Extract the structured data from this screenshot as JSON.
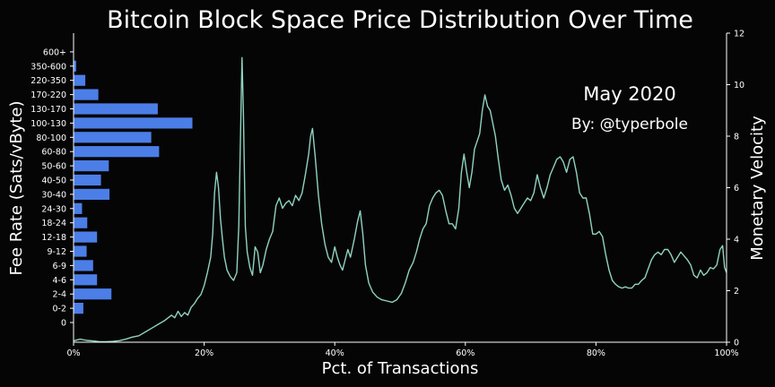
{
  "colors": {
    "background": "#060506",
    "bars": "#4c7ee8",
    "line": "#8fd3c0",
    "text": "#ffffff"
  },
  "chart_data": {
    "type": "bar",
    "orientation": "horizontal",
    "title": "Bitcoin Block Space Price Distribution Over Time",
    "xlabel": "Pct. of Transactions",
    "ylabel": "Fee Rate (Sats/vByte)",
    "y2label": "Monetary Velocity",
    "xlim": [
      0,
      100
    ],
    "x_ticks": [
      "0%",
      "20%",
      "40%",
      "60%",
      "80%",
      "100%"
    ],
    "y2lim": [
      0,
      12
    ],
    "y2_ticks": [
      "0",
      "2",
      "4",
      "6",
      "8",
      "10",
      "12"
    ],
    "annotations": [
      "May 2020",
      "By: @typerbole"
    ],
    "grid": false,
    "categories": [
      "0",
      "0-2",
      "2-4",
      "4-6",
      "6-9",
      "9-12",
      "12-18",
      "18-24",
      "24-30",
      "30-40",
      "40-50",
      "50-60",
      "60-80",
      "80-100",
      "100-130",
      "130-170",
      "170-220",
      "220-350",
      "350-600",
      "600+"
    ],
    "values": [
      0.0,
      1.5,
      5.8,
      3.6,
      3.0,
      2.0,
      3.6,
      2.1,
      1.3,
      5.5,
      4.2,
      5.4,
      13.1,
      11.9,
      18.2,
      12.9,
      3.8,
      1.8,
      0.4,
      0.0
    ],
    "series": [
      {
        "values": [
          [
            0,
            0.05
          ],
          [
            1,
            0.12
          ],
          [
            2,
            0.07
          ],
          [
            3,
            0.05
          ],
          [
            4,
            0.02
          ],
          [
            5,
            0.02
          ],
          [
            6,
            0.03
          ],
          [
            7,
            0.06
          ],
          [
            8,
            0.12
          ],
          [
            9,
            0.2
          ],
          [
            10,
            0.25
          ],
          [
            11,
            0.4
          ],
          [
            12,
            0.55
          ],
          [
            13,
            0.7
          ],
          [
            14,
            0.85
          ],
          [
            15,
            1.05
          ],
          [
            15.5,
            0.95
          ],
          [
            16,
            1.2
          ],
          [
            16.5,
            1.0
          ],
          [
            17,
            1.15
          ],
          [
            17.5,
            1.05
          ],
          [
            18,
            1.35
          ],
          [
            18.5,
            1.5
          ],
          [
            19,
            1.7
          ],
          [
            19.5,
            1.85
          ],
          [
            20,
            2.2
          ],
          [
            20.5,
            2.7
          ],
          [
            21,
            3.3
          ],
          [
            21.3,
            4.2
          ],
          [
            21.6,
            5.8
          ],
          [
            21.9,
            6.6
          ],
          [
            22.2,
            6.0
          ],
          [
            22.5,
            4.8
          ],
          [
            22.8,
            4.0
          ],
          [
            23.1,
            3.3
          ],
          [
            23.5,
            2.8
          ],
          [
            24,
            2.55
          ],
          [
            24.5,
            2.4
          ],
          [
            25,
            2.7
          ],
          [
            25.3,
            4.5
          ],
          [
            25.6,
            8.5
          ],
          [
            25.8,
            11.05
          ],
          [
            26.0,
            9.0
          ],
          [
            26.3,
            4.5
          ],
          [
            26.6,
            3.5
          ],
          [
            27,
            2.9
          ],
          [
            27.4,
            2.6
          ],
          [
            27.8,
            3.7
          ],
          [
            28.2,
            3.5
          ],
          [
            28.6,
            2.7
          ],
          [
            29,
            3.0
          ],
          [
            29.5,
            3.6
          ],
          [
            30,
            4.0
          ],
          [
            30.5,
            4.3
          ],
          [
            31,
            5.3
          ],
          [
            31.5,
            5.6
          ],
          [
            32,
            5.2
          ],
          [
            32.5,
            5.4
          ],
          [
            33,
            5.5
          ],
          [
            33.5,
            5.3
          ],
          [
            34,
            5.7
          ],
          [
            34.5,
            5.5
          ],
          [
            35,
            5.8
          ],
          [
            35.5,
            6.5
          ],
          [
            36,
            7.3
          ],
          [
            36.3,
            8.0
          ],
          [
            36.6,
            8.3
          ],
          [
            37,
            7.2
          ],
          [
            37.5,
            5.7
          ],
          [
            38,
            4.6
          ],
          [
            38.5,
            3.8
          ],
          [
            39,
            3.3
          ],
          [
            39.5,
            3.1
          ],
          [
            40,
            3.7
          ],
          [
            40.4,
            3.3
          ],
          [
            40.8,
            3.0
          ],
          [
            41.2,
            2.8
          ],
          [
            41.6,
            3.2
          ],
          [
            42,
            3.6
          ],
          [
            42.4,
            3.3
          ],
          [
            43,
            4.0
          ],
          [
            43.5,
            4.7
          ],
          [
            43.9,
            5.1
          ],
          [
            44.3,
            4.2
          ],
          [
            44.7,
            3.0
          ],
          [
            45.2,
            2.3
          ],
          [
            45.8,
            1.95
          ],
          [
            46.5,
            1.75
          ],
          [
            47.2,
            1.65
          ],
          [
            48,
            1.6
          ],
          [
            48.8,
            1.55
          ],
          [
            49.5,
            1.65
          ],
          [
            50.2,
            1.9
          ],
          [
            50.8,
            2.3
          ],
          [
            51.4,
            2.8
          ],
          [
            52,
            3.1
          ],
          [
            52.5,
            3.5
          ],
          [
            53,
            4.0
          ],
          [
            53.5,
            4.4
          ],
          [
            54,
            4.6
          ],
          [
            54.5,
            5.3
          ],
          [
            55,
            5.6
          ],
          [
            55.5,
            5.8
          ],
          [
            56,
            5.9
          ],
          [
            56.5,
            5.7
          ],
          [
            57,
            5.1
          ],
          [
            57.5,
            4.6
          ],
          [
            58,
            4.6
          ],
          [
            58.5,
            4.4
          ],
          [
            59,
            5.2
          ],
          [
            59.4,
            6.6
          ],
          [
            59.8,
            7.3
          ],
          [
            60.2,
            6.6
          ],
          [
            60.6,
            6.0
          ],
          [
            61,
            6.6
          ],
          [
            61.4,
            7.5
          ],
          [
            61.8,
            7.8
          ],
          [
            62.2,
            8.1
          ],
          [
            62.6,
            9.0
          ],
          [
            63,
            9.6
          ],
          [
            63.4,
            9.15
          ],
          [
            63.8,
            9.0
          ],
          [
            64.2,
            8.5
          ],
          [
            64.6,
            8.0
          ],
          [
            65,
            7.2
          ],
          [
            65.5,
            6.3
          ],
          [
            66,
            5.9
          ],
          [
            66.5,
            6.1
          ],
          [
            67,
            5.7
          ],
          [
            67.5,
            5.2
          ],
          [
            68,
            5.0
          ],
          [
            68.5,
            5.2
          ],
          [
            69,
            5.4
          ],
          [
            69.5,
            5.6
          ],
          [
            70,
            5.5
          ],
          [
            70.5,
            5.8
          ],
          [
            71,
            6.5
          ],
          [
            71.5,
            6.0
          ],
          [
            72,
            5.6
          ],
          [
            72.5,
            6.0
          ],
          [
            73,
            6.5
          ],
          [
            73.5,
            6.8
          ],
          [
            74,
            7.1
          ],
          [
            74.5,
            7.2
          ],
          [
            75,
            7.0
          ],
          [
            75.5,
            6.6
          ],
          [
            76,
            7.1
          ],
          [
            76.5,
            7.2
          ],
          [
            77,
            6.6
          ],
          [
            77.5,
            5.8
          ],
          [
            78,
            5.6
          ],
          [
            78.5,
            5.6
          ],
          [
            79,
            5.0
          ],
          [
            79.5,
            4.2
          ],
          [
            80,
            4.2
          ],
          [
            80.5,
            4.3
          ],
          [
            81,
            4.1
          ],
          [
            81.5,
            3.4
          ],
          [
            82,
            2.8
          ],
          [
            82.5,
            2.4
          ],
          [
            83,
            2.25
          ],
          [
            83.5,
            2.15
          ],
          [
            84,
            2.1
          ],
          [
            84.5,
            2.15
          ],
          [
            85,
            2.1
          ],
          [
            85.5,
            2.1
          ],
          [
            86,
            2.25
          ],
          [
            86.5,
            2.25
          ],
          [
            87,
            2.4
          ],
          [
            87.5,
            2.5
          ],
          [
            88,
            2.85
          ],
          [
            88.5,
            3.2
          ],
          [
            89,
            3.4
          ],
          [
            89.5,
            3.5
          ],
          [
            90,
            3.4
          ],
          [
            90.5,
            3.6
          ],
          [
            91,
            3.6
          ],
          [
            91.5,
            3.4
          ],
          [
            92,
            3.1
          ],
          [
            92.5,
            3.3
          ],
          [
            93,
            3.5
          ],
          [
            93.5,
            3.35
          ],
          [
            94,
            3.2
          ],
          [
            94.5,
            3.0
          ],
          [
            95,
            2.6
          ],
          [
            95.5,
            2.5
          ],
          [
            96,
            2.8
          ],
          [
            96.5,
            2.6
          ],
          [
            97,
            2.7
          ],
          [
            97.5,
            2.9
          ],
          [
            98,
            2.85
          ],
          [
            98.5,
            3.0
          ],
          [
            99,
            3.6
          ],
          [
            99.4,
            3.75
          ],
          [
            99.7,
            2.9
          ],
          [
            100,
            2.7
          ]
        ]
      }
    ]
  }
}
